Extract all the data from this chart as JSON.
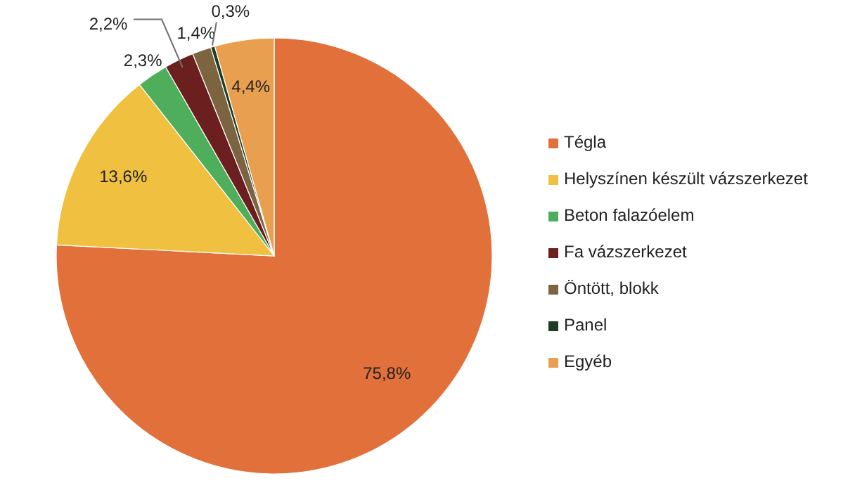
{
  "chart_data": {
    "type": "pie",
    "categories": [
      "Tégla",
      "Helyszínen készült vázszerkezet",
      "Beton falazóelem",
      "Fa vázszerkezet",
      "Öntött, blokk",
      "Panel",
      "Egyéb"
    ],
    "values": [
      75.8,
      13.6,
      2.3,
      2.2,
      1.4,
      0.3,
      4.4
    ],
    "colors": [
      "#e2703a",
      "#f0c040",
      "#4fae5c",
      "#6b1f1f",
      "#7d6440",
      "#1f3d22",
      "#e8a050"
    ],
    "value_labels": [
      "75,8%",
      "13,6%",
      "2,3%",
      "2,2%",
      "1,4%",
      "0,3%",
      "4,4%"
    ],
    "legend": "right"
  }
}
